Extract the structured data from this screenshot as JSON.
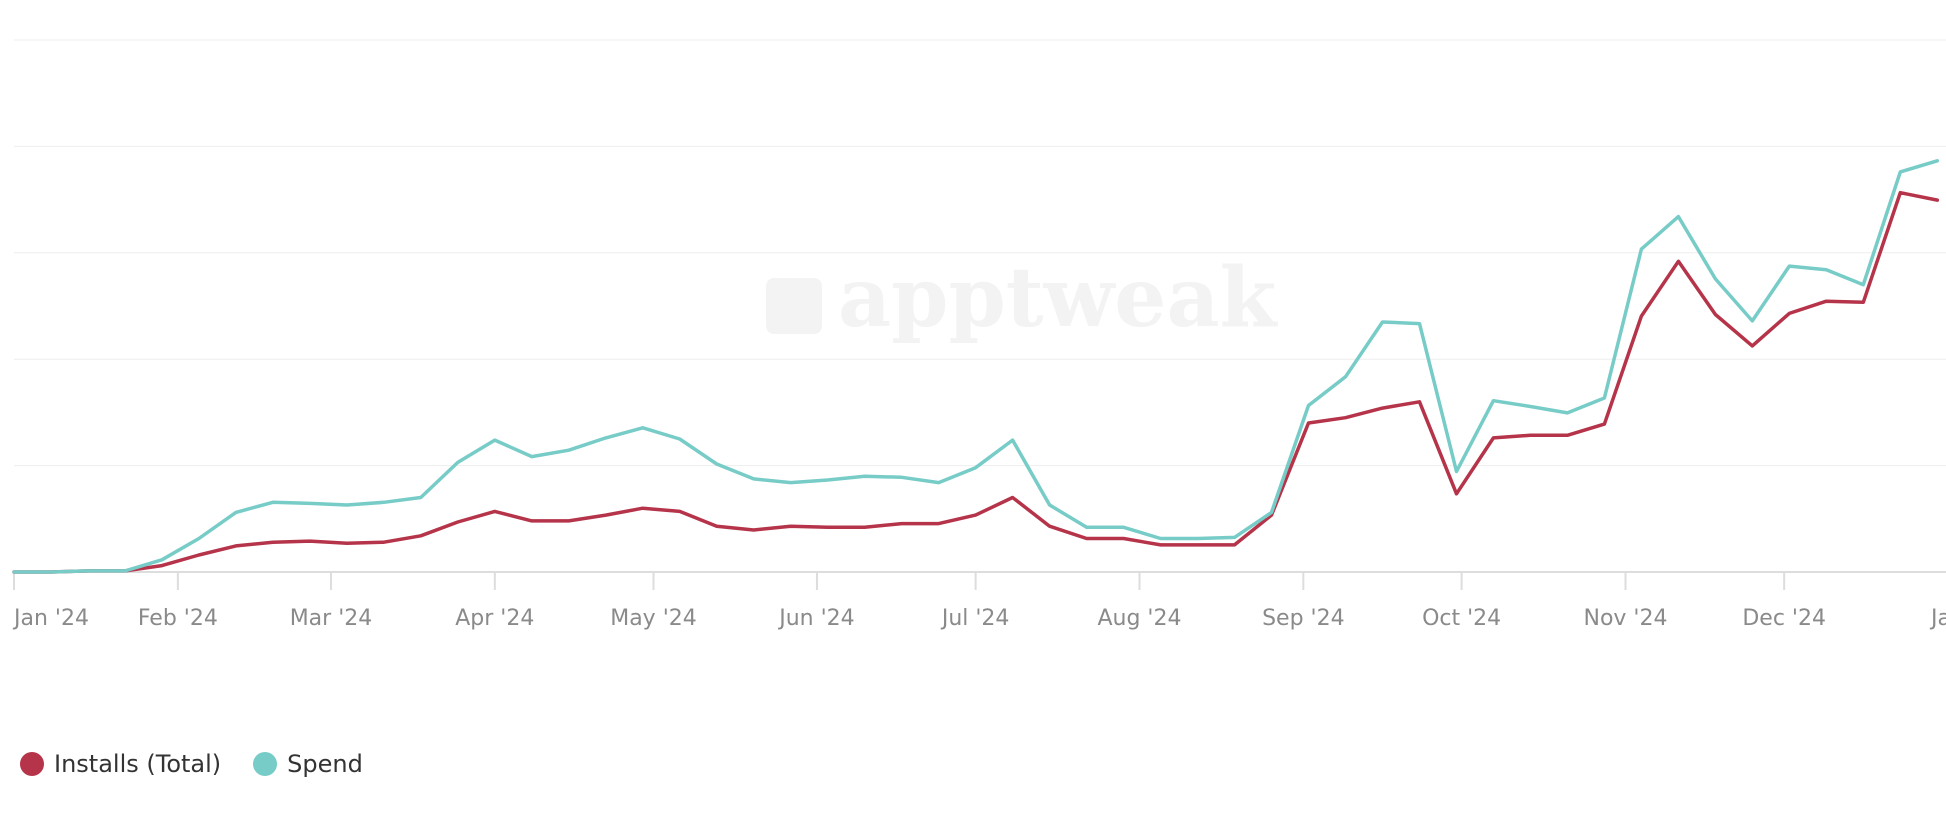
{
  "watermark": "apptweak",
  "colors": {
    "installs": "#b5344a",
    "spend": "#77ccc7",
    "grid": "#eeeeee",
    "axis": "#dddddd",
    "tick_text": "#8a8a8a",
    "watermark": "#f3f3f3"
  },
  "legend": [
    {
      "label": "Installs (Total)",
      "color": "#b5344a"
    },
    {
      "label": "Spend",
      "color": "#77ccc7"
    }
  ],
  "chart_data": {
    "type": "line",
    "title": "",
    "xlabel": "",
    "ylabel": "",
    "ylim": [
      0,
      100
    ],
    "grid": true,
    "legend_position": "bottom-left",
    "x_ticks": [
      {
        "label": "Jan '24",
        "x": 0
      },
      {
        "label": "Feb '24",
        "x": 4.43
      },
      {
        "label": "Mar '24",
        "x": 8.57
      },
      {
        "label": "Apr '24",
        "x": 13
      },
      {
        "label": "May '24",
        "x": 17.29
      },
      {
        "label": "Jun '24",
        "x": 21.71
      },
      {
        "label": "Jul '24",
        "x": 26
      },
      {
        "label": "Aug '24",
        "x": 30.43
      },
      {
        "label": "Sep '24",
        "x": 34.86
      },
      {
        "label": "Oct '24",
        "x": 39.14
      },
      {
        "label": "Nov '24",
        "x": 43.57
      },
      {
        "label": "Dec '24",
        "x": 47.86
      },
      {
        "label": "Jan",
        "x": 52.29
      }
    ],
    "x": [
      0,
      1,
      2,
      3,
      4,
      5,
      6,
      7,
      8,
      9,
      10,
      11,
      12,
      13,
      14,
      15,
      16,
      17,
      18,
      19,
      20,
      21,
      22,
      23,
      24,
      25,
      26,
      27,
      28,
      29,
      30,
      31,
      32,
      33,
      34,
      35,
      36,
      37,
      38,
      39,
      40,
      41,
      42,
      43,
      44,
      45,
      46,
      47,
      48,
      49,
      50,
      51,
      52
    ],
    "series": [
      {
        "name": "Installs (Total)",
        "values": [
          0.0,
          0.0,
          0.2,
          0.2,
          1.2,
          3.2,
          4.9,
          5.6,
          5.8,
          5.4,
          5.6,
          6.8,
          9.4,
          11.4,
          9.6,
          9.6,
          10.7,
          12.0,
          11.4,
          8.6,
          7.9,
          8.6,
          8.4,
          8.4,
          9.1,
          9.1,
          10.7,
          14.0,
          8.6,
          6.3,
          6.3,
          5.1,
          5.1,
          5.1,
          10.7,
          28.0,
          29.0,
          30.8,
          32.0,
          14.7,
          25.2,
          25.7,
          25.7,
          27.8,
          48.1,
          58.4,
          48.4,
          42.5,
          48.6,
          50.9,
          50.7,
          71.3,
          69.9
        ]
      },
      {
        "name": "Spend",
        "values": [
          0.0,
          0.0,
          0.2,
          0.2,
          2.3,
          6.3,
          11.2,
          13.1,
          12.9,
          12.6,
          13.1,
          14.0,
          20.6,
          24.8,
          21.7,
          22.9,
          25.2,
          27.1,
          25.0,
          20.3,
          17.5,
          16.8,
          17.3,
          18.0,
          17.8,
          16.8,
          19.6,
          24.8,
          12.6,
          8.4,
          8.4,
          6.3,
          6.3,
          6.5,
          11.2,
          31.3,
          36.7,
          47.0,
          46.7,
          18.9,
          32.2,
          31.1,
          29.9,
          32.7,
          60.7,
          66.8,
          55.1,
          47.2,
          57.5,
          56.8,
          54.0,
          75.2,
          77.3
        ]
      }
    ]
  }
}
